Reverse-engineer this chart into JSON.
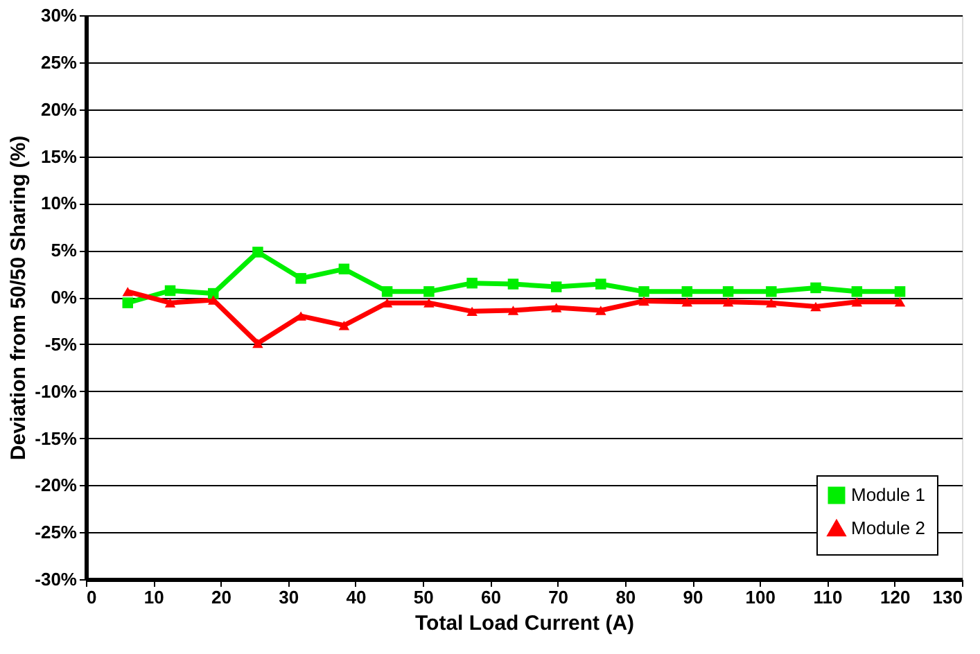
{
  "chart_data": {
    "type": "line",
    "xlabel": "Total Load Current (A)",
    "ylabel": "Deviation from 50/50 Sharing (%)",
    "x": [
      6.2,
      12.5,
      18.9,
      25.5,
      31.9,
      38.3,
      44.7,
      50.9,
      57.3,
      63.4,
      69.8,
      76.4,
      82.8,
      89.2,
      95.3,
      101.7,
      108.3,
      114.4,
      120.8
    ],
    "series": [
      {
        "name": "Module 1",
        "color": "#00ee00",
        "marker": "square",
        "values": [
          -0.6,
          0.7,
          0.4,
          4.8,
          2.0,
          3.0,
          0.6,
          0.6,
          1.5,
          1.4,
          1.1,
          1.4,
          0.6,
          0.6,
          0.6,
          0.6,
          1.0,
          0.6,
          0.6
        ]
      },
      {
        "name": "Module 2",
        "color": "#ff0000",
        "marker": "triangle",
        "values": [
          0.6,
          -0.6,
          -0.3,
          -4.9,
          -2.0,
          -3.0,
          -0.6,
          -0.6,
          -1.5,
          -1.4,
          -1.1,
          -1.4,
          -0.4,
          -0.5,
          -0.5,
          -0.6,
          -1.0,
          -0.5,
          -0.5
        ]
      }
    ],
    "xlim": [
      0,
      130
    ],
    "xticks": [
      0,
      10,
      20,
      30,
      40,
      50,
      60,
      70,
      80,
      90,
      100,
      110,
      120,
      130
    ],
    "ylim": [
      -30,
      30
    ],
    "yticks": [
      {
        "value": -30,
        "label": "-30%"
      },
      {
        "value": -25,
        "label": "-25%"
      },
      {
        "value": -20,
        "label": "-20%"
      },
      {
        "value": -15,
        "label": "-15%"
      },
      {
        "value": -10,
        "label": "-10%"
      },
      {
        "value": -5,
        "label": "-5%"
      },
      {
        "value": 0,
        "label": "0%"
      },
      {
        "value": 5,
        "label": "5%"
      },
      {
        "value": 10,
        "label": "10%"
      },
      {
        "value": 15,
        "label": "15%"
      },
      {
        "value": 20,
        "label": "20%"
      },
      {
        "value": 25,
        "label": "25%"
      },
      {
        "value": 30,
        "label": "30%"
      }
    ],
    "grid": "y",
    "legend": "bottom right",
    "line_style": "solid"
  }
}
